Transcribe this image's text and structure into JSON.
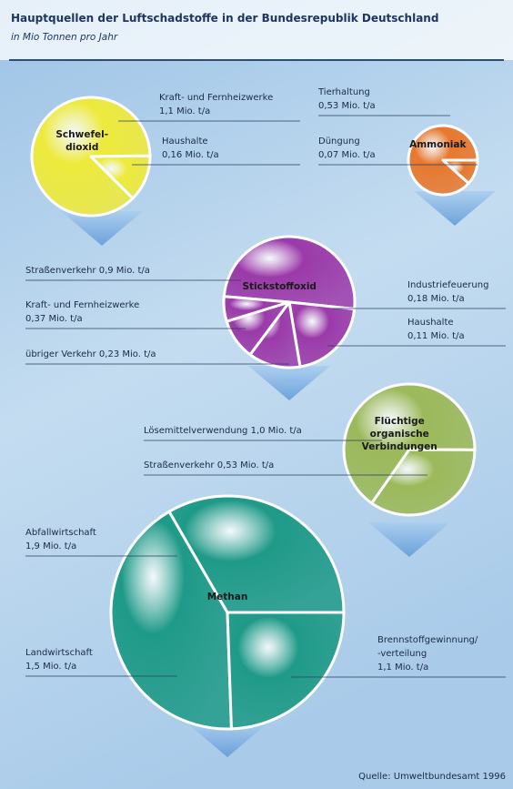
{
  "title": "Hauptquellen der Luftschadstoffe in der Bundesrepublik Deutschland",
  "subtitle": "in Mio Tonnen pro Jahr",
  "source": "Quelle: Umweltbundesamt 1996",
  "chart_data": [
    {
      "type": "pie",
      "title": [
        "Schwefel-",
        "dioxid"
      ],
      "color": "#eeea3c",
      "categories": [
        "Kraft- und Fernheizwerke",
        "Haushalte"
      ],
      "values": [
        1.1,
        0.16
      ],
      "value_labels": [
        "1,1 Mio. t/a",
        "0,16 Mio. t/a"
      ]
    },
    {
      "type": "pie",
      "title": [
        "Ammoniak"
      ],
      "color": "#e8782e",
      "categories": [
        "Tierhaltung",
        "Düngung"
      ],
      "values": [
        0.53,
        0.07
      ],
      "value_labels": [
        "0,53 Mio. t/a",
        "0,07 Mio. t/a"
      ]
    },
    {
      "type": "pie",
      "title": [
        "Stickstoffoxid"
      ],
      "color": "#9b3aa9",
      "categories": [
        "Straßenverkehr",
        "Kraft- und Fernheizwerke",
        "übriger Verkehr",
        "Industriefeuerung",
        "Haushalte"
      ],
      "values": [
        0.9,
        0.37,
        0.23,
        0.18,
        0.11
      ],
      "value_labels": [
        "0,9 Mio. t/a",
        "0,37 Mio. t/a",
        "0,23 Mio. t/a",
        "0,18 Mio. t/a",
        "0,11 Mio. t/a"
      ]
    },
    {
      "type": "pie",
      "title": [
        "Flüchtige",
        "organische",
        "Verbindungen"
      ],
      "color": "#9cb95a",
      "categories": [
        "Lösemittelverwendung",
        "Straßenverkehr"
      ],
      "values": [
        1.0,
        0.53
      ],
      "value_labels": [
        "1,0 Mio. t/a",
        "0,53 Mio. t/a"
      ]
    },
    {
      "type": "pie",
      "title": [
        "Methan"
      ],
      "color": "#1f9a88",
      "categories": [
        "Abfallwirtschaft",
        "Landwirtschaft",
        [
          "Brennstoffgewinnung/",
          "-verteilung"
        ]
      ],
      "values": [
        1.9,
        1.5,
        1.1
      ],
      "value_labels": [
        "1,9 Mio. t/a",
        "1,5 Mio. t/a",
        "1,1 Mio. t/a"
      ]
    }
  ]
}
